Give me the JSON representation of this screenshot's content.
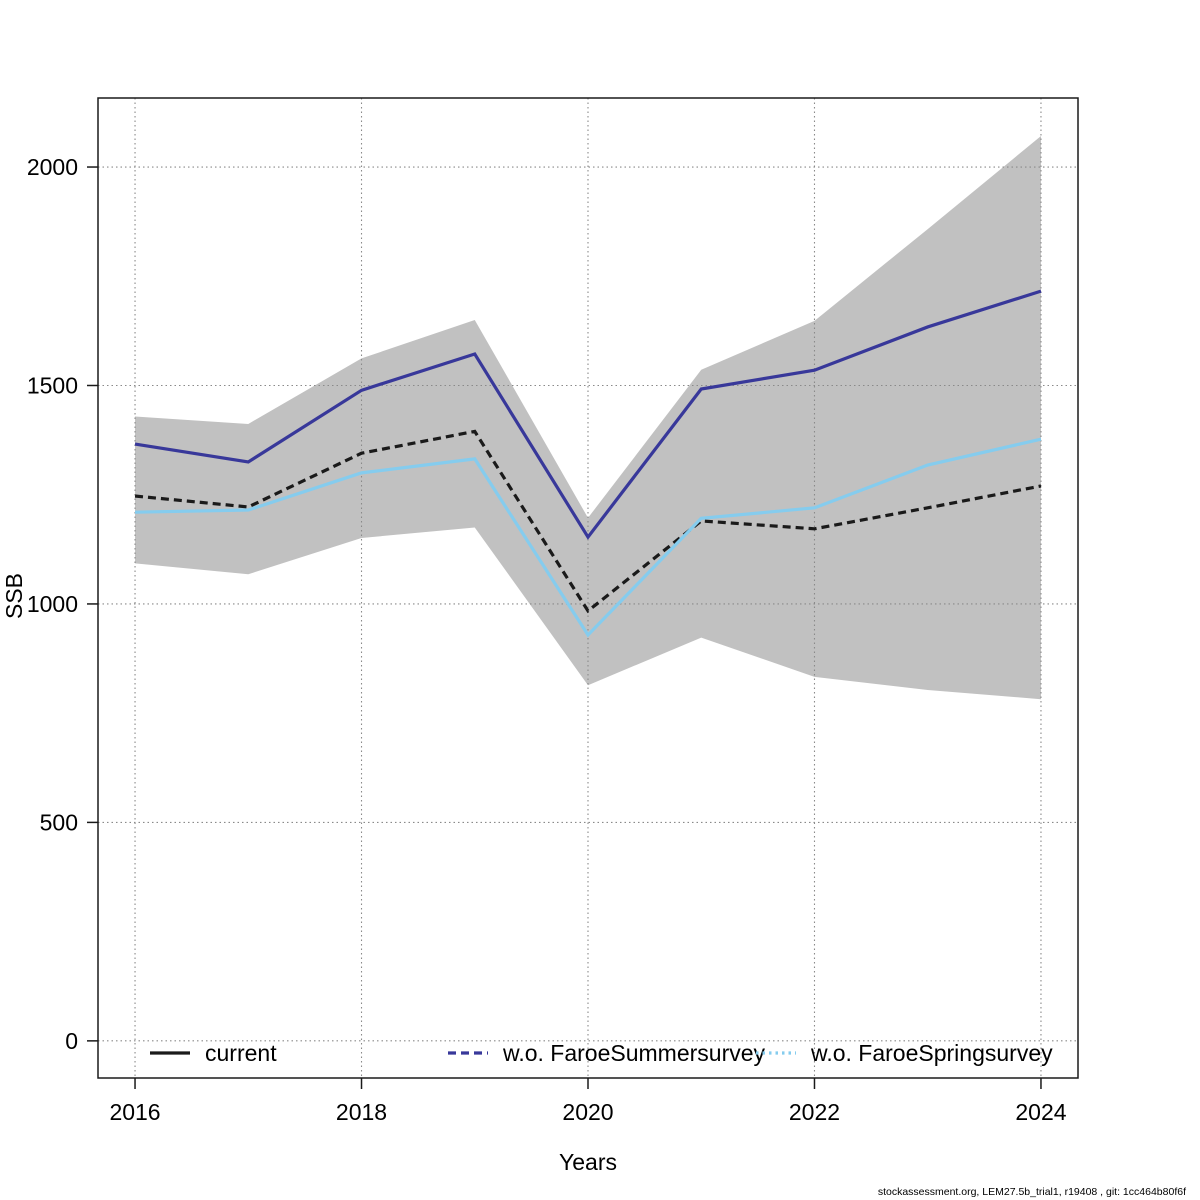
{
  "footer": "stockassessment.org, LEM27.5b_trial1, r19408 , git: 1cc464b80f6f",
  "chart_data": {
    "type": "line",
    "title": "",
    "xlabel": "Years",
    "ylabel": "SSB",
    "x": [
      2016,
      2017,
      2018,
      2019,
      2020,
      2021,
      2022,
      2023,
      2024
    ],
    "x_ticks": [
      2016,
      2018,
      2020,
      2022,
      2024
    ],
    "y_ticks": [
      0,
      500,
      1000,
      1500,
      2000
    ],
    "xlim": [
      2015.673,
      2024.327
    ],
    "ylim": [
      -85,
      2158
    ],
    "grid": true,
    "grid_style": "dotted",
    "legend_position": "bottom",
    "series": [
      {
        "name": "current",
        "color": "#1a1a1a",
        "line_style": "dashed",
        "values": [
          1247,
          1222,
          1345,
          1395,
          984,
          1190,
          1172,
          1220,
          1270
        ]
      },
      {
        "name": "w.o. FaroeSummersurvey",
        "color": "#38389a",
        "line_style": "solid",
        "values": [
          1366,
          1325,
          1489,
          1572,
          1153,
          1492,
          1535,
          1634,
          1716
        ]
      },
      {
        "name": "w.o. FaroeSpringsurvey",
        "color": "#85ccee",
        "line_style": "solid",
        "values": [
          1210,
          1215,
          1300,
          1332,
          929,
          1196,
          1220,
          1318,
          1377
        ]
      }
    ],
    "confidence_band": {
      "series": "current",
      "color": "#c1c1c1",
      "low": [
        1093,
        1068,
        1151,
        1175,
        814,
        923,
        833,
        803,
        782
      ],
      "high": [
        1429,
        1412,
        1562,
        1650,
        1197,
        1536,
        1648,
        1858,
        2071
      ]
    },
    "legend": {
      "items": [
        {
          "label": "current",
          "color": "#1a1a1a",
          "sample_style": "solid"
        },
        {
          "label": "w.o. FaroeSummersurvey",
          "color": "#38389a",
          "sample_style": "dashed"
        },
        {
          "label": "w.o. FaroeSpringsurvey",
          "color": "#85ccee",
          "sample_style": "dotted"
        }
      ]
    }
  }
}
